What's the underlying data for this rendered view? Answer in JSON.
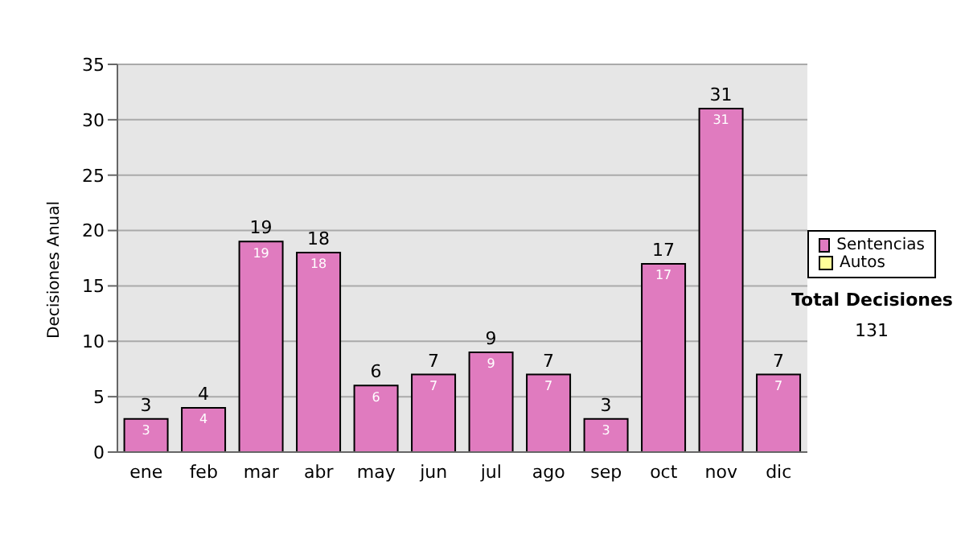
{
  "chart_data": {
    "type": "bar",
    "ylabel": "Decisiones Anual",
    "categories": [
      "ene",
      "feb",
      "mar",
      "abr",
      "may",
      "jun",
      "jul",
      "ago",
      "sep",
      "oct",
      "nov",
      "dic"
    ],
    "series": [
      {
        "name": "Sentencias",
        "color": "#e07bbf",
        "values": [
          3,
          4,
          19,
          18,
          6,
          7,
          9,
          7,
          3,
          17,
          31,
          7
        ]
      },
      {
        "name": "Autos",
        "color": "#ffff99",
        "values": [
          null,
          null,
          null,
          null,
          null,
          null,
          null,
          null,
          null,
          null,
          null,
          null
        ]
      }
    ],
    "ylim": [
      0,
      35
    ],
    "yticks": [
      0,
      5,
      10,
      15,
      20,
      25,
      30,
      35
    ],
    "grid": "y",
    "legend": "right",
    "data_labels": true,
    "stacked": true,
    "totals": [
      "3",
      "4",
      "19",
      "18",
      "6",
      "7",
      "9",
      "7",
      "3",
      "17",
      "31",
      "7"
    ],
    "annotations": [
      "Total Decisiones",
      "131"
    ]
  }
}
